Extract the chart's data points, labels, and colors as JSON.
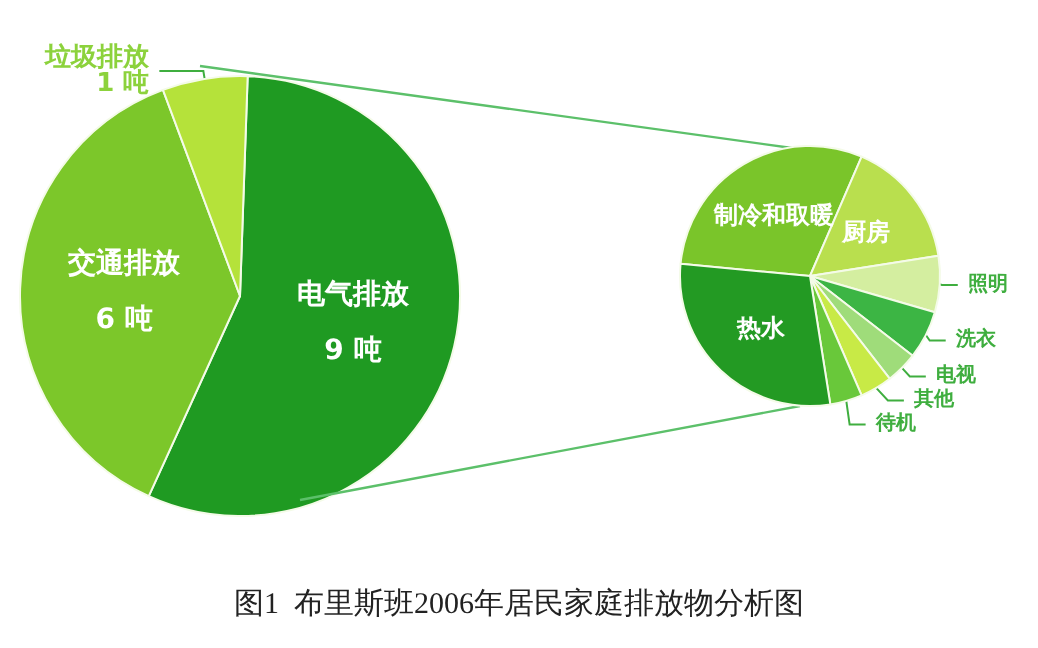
{
  "chart_data": [
    {
      "type": "pie",
      "categories": [
        "电气排放",
        "交通排放",
        "垃圾排放"
      ],
      "values": [
        9,
        6,
        1
      ],
      "value_labels": [
        "9 吨",
        "6 吨",
        "1 吨"
      ],
      "colors": [
        "#1f9a22",
        "#7cc72a",
        "#b5e23a"
      ],
      "annotations": [
        "图1  布里斯班2006年居民家庭排放物分析图"
      ]
    },
    {
      "type": "pie",
      "categories": [
        "制冷和取暖",
        "厨房",
        "照明",
        "洗衣",
        "电视",
        "其他",
        "待机",
        "热水"
      ],
      "values": [
        30,
        16,
        7,
        6,
        4,
        4,
        4,
        29
      ],
      "colors": [
        "#7ac52a",
        "#b9df4e",
        "#d4eea0",
        "#3cb544",
        "#9fdc7a",
        "#c8ea46",
        "#69c83a",
        "#239a23"
      ]
    }
  ]
}
